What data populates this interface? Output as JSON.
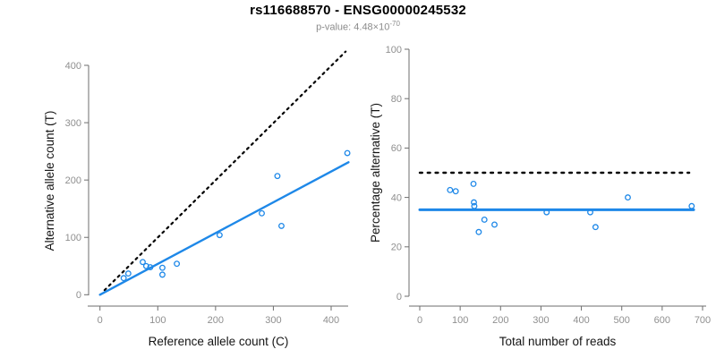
{
  "header": {
    "title": "rs116688570 - ENSG00000245532",
    "subtitle_prefix": "p-value: 4.48×10",
    "subtitle_exponent": "-70"
  },
  "colors": {
    "accent_blue": "#1E88E8",
    "dotted_black": "#000000",
    "axis_line": "#6e6e6e",
    "tick_label": "#8f8f8f",
    "axis_title": "#141414",
    "background": "#ffffff"
  },
  "chart_data": [
    {
      "type": "scatter",
      "title": "",
      "xlabel": "Reference allele count (C)",
      "ylabel": "Alternative allele count (T)",
      "xlim": [
        0,
        430
      ],
      "ylim": [
        0,
        430
      ],
      "xticks": [
        0,
        100,
        200,
        300,
        400
      ],
      "yticks": [
        0,
        100,
        200,
        300,
        400
      ],
      "grid": false,
      "point_style": "open-circle",
      "points": [
        [
          41,
          29
        ],
        [
          49,
          37
        ],
        [
          74,
          57
        ],
        [
          80,
          50
        ],
        [
          87,
          48
        ],
        [
          108,
          35
        ],
        [
          108,
          47
        ],
        [
          133,
          54
        ],
        [
          207,
          104
        ],
        [
          280,
          142
        ],
        [
          307,
          207
        ],
        [
          314,
          120
        ],
        [
          428,
          247
        ]
      ],
      "lines": [
        {
          "name": "identity-line",
          "style": "dotted",
          "color": "#000000",
          "from": [
            8,
            8
          ],
          "to": [
            425,
            424
          ]
        },
        {
          "name": "regression-line",
          "style": "solid",
          "color": "#1E88E8",
          "from": [
            0,
            0
          ],
          "to": [
            430,
            231
          ]
        }
      ]
    },
    {
      "type": "scatter",
      "title": "",
      "xlabel": "Total number of reads",
      "ylabel": "Percentage alternative (T)",
      "xlim": [
        0,
        710
      ],
      "ylim": [
        0,
        100
      ],
      "xticks": [
        0,
        100,
        200,
        300,
        400,
        500,
        600,
        700
      ],
      "yticks": [
        0,
        20,
        40,
        60,
        80,
        100
      ],
      "grid": false,
      "point_style": "open-circle",
      "points": [
        [
          75,
          43
        ],
        [
          89,
          42.5
        ],
        [
          133,
          45.5
        ],
        [
          134,
          38
        ],
        [
          135,
          36.5
        ],
        [
          146,
          26
        ],
        [
          160,
          31
        ],
        [
          185,
          29
        ],
        [
          314,
          34
        ],
        [
          422,
          34
        ],
        [
          435,
          28
        ],
        [
          515,
          40
        ],
        [
          673,
          36.5
        ]
      ],
      "lines": [
        {
          "name": "fifty-percent-line",
          "style": "dotted",
          "color": "#000000",
          "from": [
            0,
            50
          ],
          "to": [
            667,
            50
          ]
        },
        {
          "name": "mean-percentage-line",
          "style": "solid",
          "color": "#1E88E8",
          "from": [
            0,
            35
          ],
          "to": [
            678,
            35
          ]
        }
      ]
    }
  ]
}
